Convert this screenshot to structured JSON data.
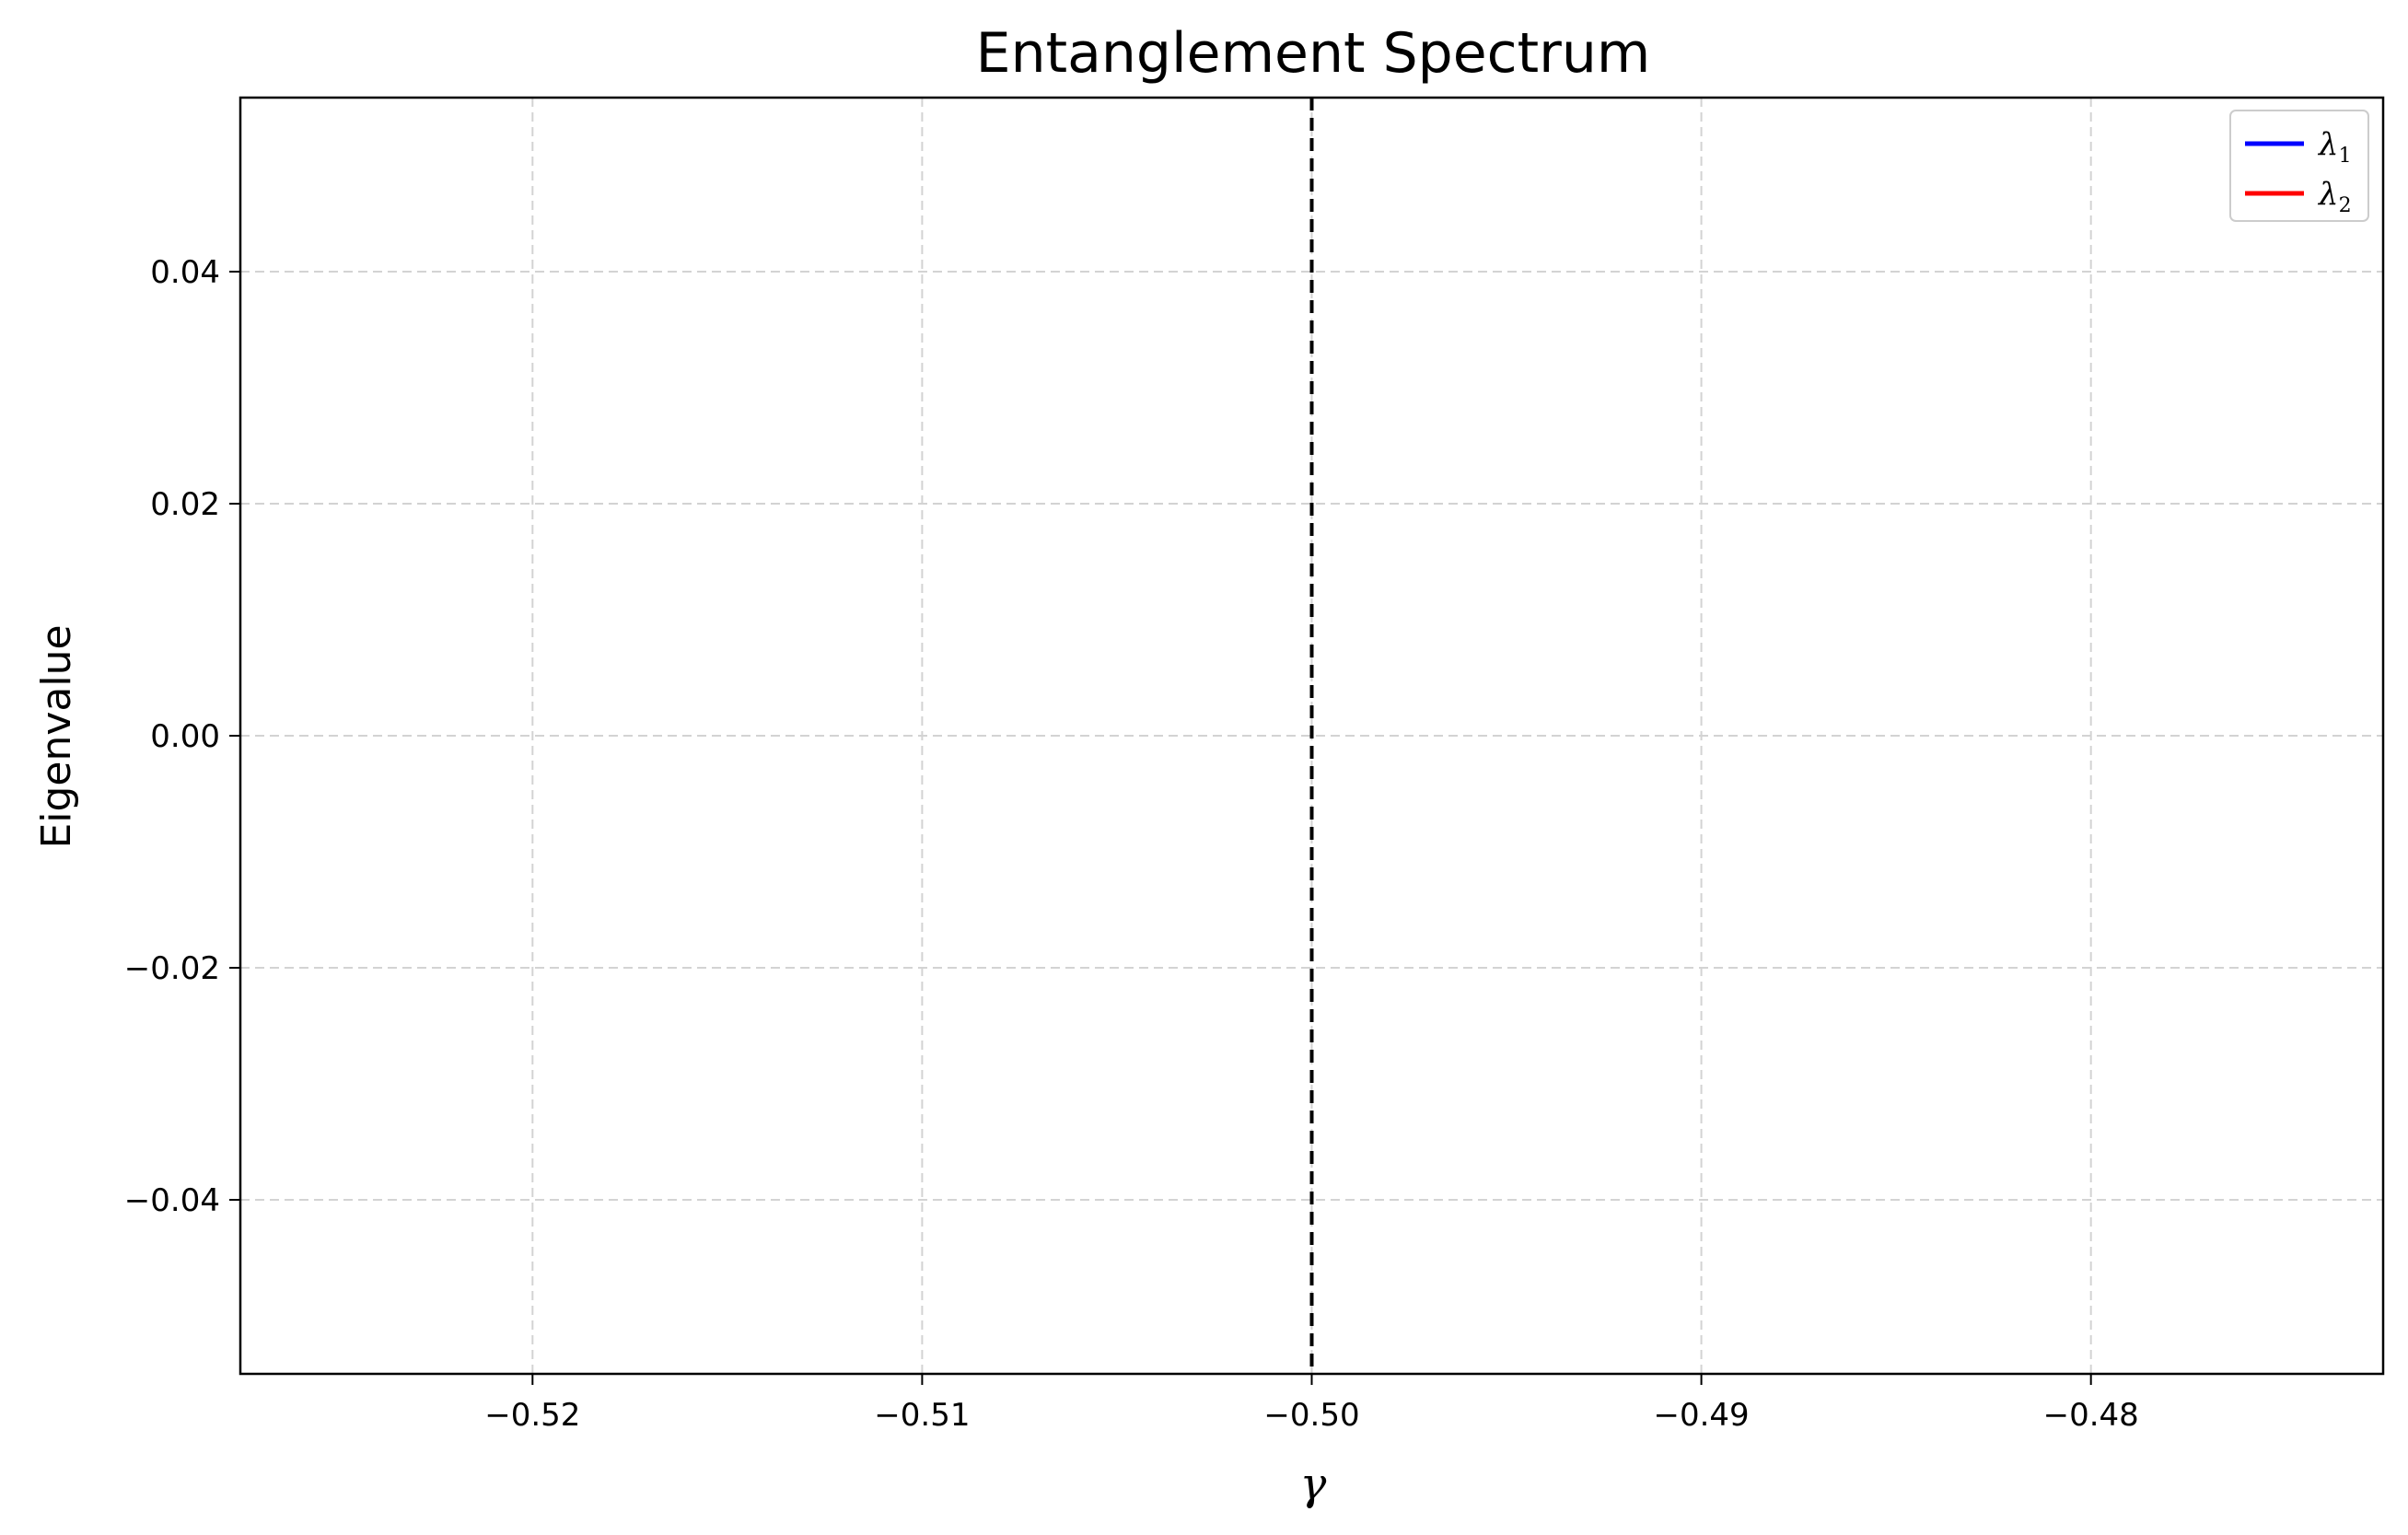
{
  "chart_data": {
    "type": "line",
    "title": "Entanglement Spectrum",
    "xlabel": "γ",
    "ylabel": "Eigenvalue",
    "xlim": [
      -0.5275,
      -0.4725
    ],
    "ylim": [
      -0.055,
      0.055
    ],
    "xticks": [
      -0.52,
      -0.51,
      -0.5,
      -0.49,
      -0.48
    ],
    "xtick_labels": [
      "−0.52",
      "−0.51",
      "−0.50",
      "−0.49",
      "−0.48"
    ],
    "yticks": [
      0.04,
      0.02,
      0.0,
      -0.02,
      -0.04
    ],
    "ytick_labels": [
      "0.04",
      "0.02",
      "0.00",
      "−0.02",
      "−0.04"
    ],
    "grid": true,
    "legend_position": "top-right",
    "series": [
      {
        "name": "λ1",
        "label_base": "λ",
        "label_sub": "1",
        "color": "#0000ff",
        "x": [],
        "y": []
      },
      {
        "name": "λ2",
        "label_base": "λ",
        "label_sub": "2",
        "color": "#ff0000",
        "x": [],
        "y": []
      }
    ],
    "vline": {
      "x": -0.5,
      "color": "#000000",
      "style": "dashed"
    }
  }
}
